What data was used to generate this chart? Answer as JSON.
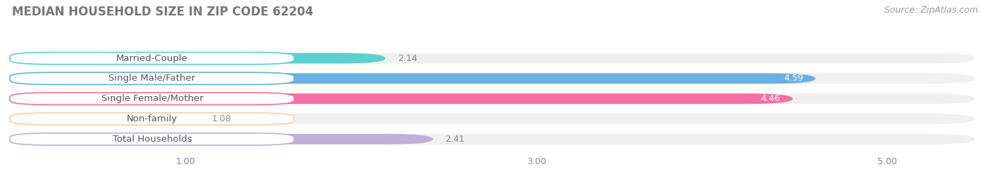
{
  "title": "MEDIAN HOUSEHOLD SIZE IN ZIP CODE 62204",
  "source": "Source: ZipAtlas.com",
  "categories": [
    "Married-Couple",
    "Single Male/Father",
    "Single Female/Mother",
    "Non-family",
    "Total Households"
  ],
  "values": [
    2.14,
    4.59,
    4.46,
    1.08,
    2.41
  ],
  "bar_colors": [
    "#5ecfcf",
    "#6ab0e0",
    "#f76fa0",
    "#f9cfa0",
    "#c0afd8"
  ],
  "xlim": [
    0.0,
    5.5
  ],
  "xticks": [
    1.0,
    3.0,
    5.0
  ],
  "xtick_labels": [
    "1.00",
    "3.00",
    "5.00"
  ],
  "background_color": "#ffffff",
  "bar_bg_color": "#f0f0f0",
  "title_color": "#777777",
  "source_color": "#999999",
  "label_color": "#555555",
  "value_color_inside": "#ffffff",
  "value_color_outside": "#888888",
  "title_fontsize": 12,
  "source_fontsize": 9,
  "label_fontsize": 9.5,
  "value_fontsize": 9,
  "tick_fontsize": 9,
  "bar_height": 0.52,
  "n_bars": 5
}
